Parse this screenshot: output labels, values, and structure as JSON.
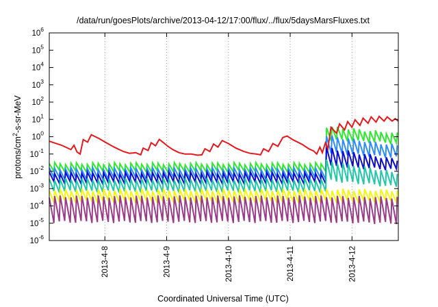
{
  "chart_data": {
    "type": "line",
    "title": "/data/run/goesPlots/archive/2013-04-12/17:00/flux/../flux/5daysMarsFluxes.txt",
    "xlabel": "Coordinated Universal Time (UTC)",
    "ylabel_parts": [
      "protons/cm",
      "2",
      "-s-sr-MeV"
    ],
    "yscale": "log",
    "ylim": [
      1e-06,
      1000000.0
    ],
    "y_ticks": [
      {
        "base": "10",
        "exp": "6",
        "v": 1000000.0
      },
      {
        "base": "10",
        "exp": "5",
        "v": 100000.0
      },
      {
        "base": "10",
        "exp": "4",
        "v": 10000.0
      },
      {
        "base": "10",
        "exp": "3",
        "v": 1000.0
      },
      {
        "base": "10",
        "exp": "2",
        "v": 100.0
      },
      {
        "base": "10",
        "exp": "1",
        "v": 10.0
      },
      {
        "base": "10",
        "exp": "0",
        "v": 1.0
      },
      {
        "base": "10",
        "exp": "-1",
        "v": 0.1
      },
      {
        "base": "10",
        "exp": "-2",
        "v": 0.01
      },
      {
        "base": "10",
        "exp": "-3",
        "v": 0.001
      },
      {
        "base": "10",
        "exp": "-4",
        "v": 0.0001
      },
      {
        "base": "10",
        "exp": "-5",
        "v": 1e-05
      },
      {
        "base": "10",
        "exp": "-6",
        "v": 1e-06
      }
    ],
    "xlim": [
      7.1,
      12.75
    ],
    "x_ticks": [
      {
        "label": "2013-4-8",
        "v": 8
      },
      {
        "label": "2013-4-9",
        "v": 9
      },
      {
        "label": "2013-4-10",
        "v": 10
      },
      {
        "label": "2013-4-11",
        "v": 11
      },
      {
        "label": "2013-4-12",
        "v": 12
      }
    ],
    "grid": true,
    "colors": {
      "red": "#e8171c",
      "green": "#2cea2c",
      "blue": "#0b0bd0",
      "lightblue": "#2a8cff",
      "teal": "#1ec8a8",
      "yellow": "#f5f510",
      "purple": "#9a3b8a"
    },
    "series": [
      {
        "color_key": "red",
        "points": [
          [
            7.1,
            0.55
          ],
          [
            7.3,
            0.32
          ],
          [
            7.45,
            0.18
          ],
          [
            7.5,
            0.32
          ],
          [
            7.55,
            0.13
          ],
          [
            7.6,
            0.1
          ],
          [
            7.65,
            0.68
          ],
          [
            7.72,
            0.48
          ],
          [
            7.78,
            1.3
          ],
          [
            7.9,
            0.8
          ],
          [
            8.0,
            0.5
          ],
          [
            8.15,
            0.25
          ],
          [
            8.3,
            0.14
          ],
          [
            8.4,
            0.11
          ],
          [
            8.5,
            0.12
          ],
          [
            8.58,
            0.09
          ],
          [
            8.62,
            0.22
          ],
          [
            8.7,
            0.16
          ],
          [
            8.75,
            0.45
          ],
          [
            8.82,
            0.3
          ],
          [
            8.88,
            0.7
          ],
          [
            8.95,
            0.45
          ],
          [
            9.02,
            0.28
          ],
          [
            9.1,
            0.18
          ],
          [
            9.2,
            0.12
          ],
          [
            9.3,
            0.1
          ],
          [
            9.4,
            0.1
          ],
          [
            9.5,
            0.085
          ],
          [
            9.57,
            0.09
          ],
          [
            9.62,
            0.2
          ],
          [
            9.7,
            0.14
          ],
          [
            9.76,
            0.38
          ],
          [
            9.83,
            0.25
          ],
          [
            9.9,
            0.6
          ],
          [
            10.0,
            0.4
          ],
          [
            10.12,
            0.22
          ],
          [
            10.25,
            0.14
          ],
          [
            10.35,
            0.11
          ],
          [
            10.45,
            0.1
          ],
          [
            10.52,
            0.09
          ],
          [
            10.57,
            0.2
          ],
          [
            10.65,
            0.14
          ],
          [
            10.72,
            0.4
          ],
          [
            10.8,
            0.28
          ],
          [
            10.88,
            0.9
          ],
          [
            10.95,
            1.1
          ],
          [
            11.05,
            0.65
          ],
          [
            11.2,
            0.35
          ],
          [
            11.3,
            0.2
          ],
          [
            11.38,
            0.15
          ],
          [
            11.43,
            0.1
          ],
          [
            11.48,
            0.25
          ],
          [
            11.52,
            0.12
          ],
          [
            11.57,
            0.45
          ],
          [
            11.61,
            0.2
          ],
          [
            11.66,
            3.5
          ],
          [
            11.75,
            1.6
          ],
          [
            11.8,
            5.5
          ],
          [
            11.88,
            2.5
          ],
          [
            11.93,
            7.5
          ],
          [
            12.0,
            3.5
          ],
          [
            12.05,
            9.5
          ],
          [
            12.13,
            4.5
          ],
          [
            12.18,
            12
          ],
          [
            12.26,
            6
          ],
          [
            12.31,
            14
          ],
          [
            12.39,
            7
          ],
          [
            12.44,
            15
          ],
          [
            12.52,
            8
          ],
          [
            12.57,
            14
          ],
          [
            12.65,
            8
          ],
          [
            12.7,
            11
          ],
          [
            12.75,
            8
          ]
        ]
      },
      {
        "color_key": "green",
        "points": []
      },
      {
        "color_key": "lightblue",
        "points": []
      },
      {
        "color_key": "blue",
        "points": []
      },
      {
        "color_key": "teal",
        "points": []
      },
      {
        "color_key": "yellow",
        "points": []
      },
      {
        "color_key": "purple",
        "points": []
      }
    ],
    "sawtooth": [
      {
        "color_key": "green",
        "pre": [
          0.028,
          0.01
        ],
        "post": [
          4.0,
          0.7
        ],
        "post_end": [
          1.5,
          0.4
        ]
      },
      {
        "color_key": "lightblue",
        "pre": [
          0.014,
          0.004
        ],
        "post": [
          1.2,
          0.12
        ],
        "post_end": [
          0.3,
          0.06
        ]
      },
      {
        "color_key": "blue",
        "pre": [
          0.008,
          0.0022
        ],
        "post": [
          0.25,
          0.02
        ],
        "post_end": [
          0.045,
          0.012
        ]
      },
      {
        "color_key": "teal",
        "pre": [
          0.0035,
          0.0007
        ],
        "post": [
          0.045,
          0.003
        ],
        "post_end": [
          0.008,
          0.0012
        ]
      },
      {
        "color_key": "yellow",
        "pre": [
          0.00085,
          0.00018
        ],
        "post": [
          0.0009,
          0.00018
        ],
        "post_end": [
          0.0008,
          0.00018
        ]
      },
      {
        "color_key": "purple",
        "pre": [
          0.00035,
          1.2e-05
        ],
        "post": [
          0.00035,
          1.2e-05
        ],
        "post_end": [
          0.0003,
          1e-05
        ]
      }
    ],
    "sawtooth_step_start": 11.53,
    "sawtooth_period": 0.088,
    "legend": "none"
  }
}
